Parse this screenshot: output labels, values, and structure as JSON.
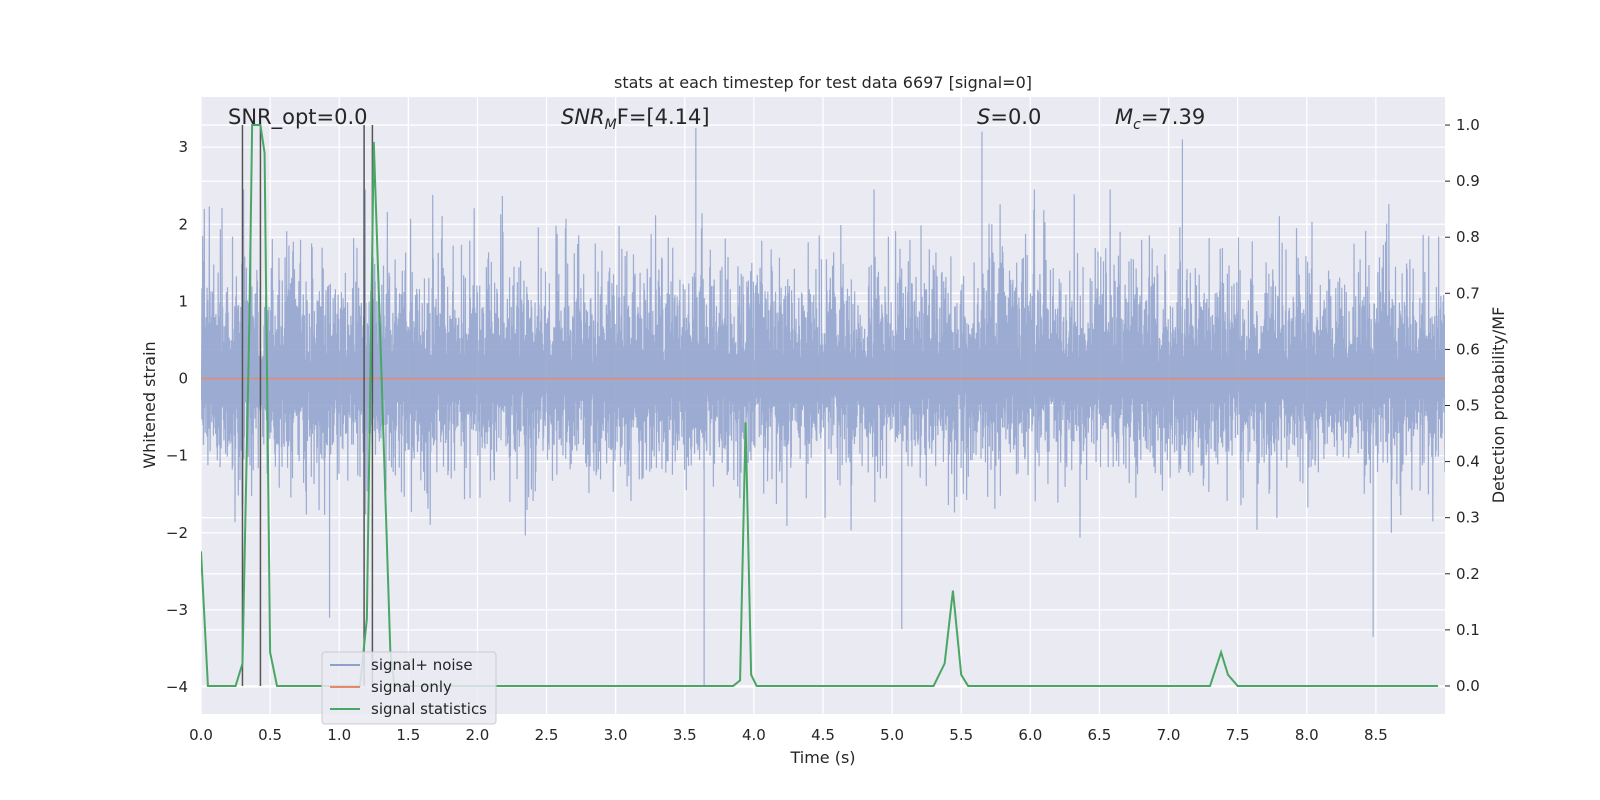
{
  "chart_data": {
    "type": "line",
    "title": "stats at each timestep for test data 6697 [signal=0]",
    "xlabel": "Time (s)",
    "ylabel": "Whitened strain",
    "y2label": "Detection probability/MF",
    "xlim": [
      0,
      9.0
    ],
    "ylim": [
      -4.35,
      3.65
    ],
    "y2lim": [
      -0.05,
      1.05
    ],
    "x_ticks": [
      0.0,
      0.5,
      1.0,
      1.5,
      2.0,
      2.5,
      3.0,
      3.5,
      4.0,
      4.5,
      5.0,
      5.5,
      6.0,
      6.5,
      7.0,
      7.5,
      8.0,
      8.5
    ],
    "x_tick_labels": [
      "0.0",
      "0.5",
      "1.0",
      "1.5",
      "2.0",
      "2.5",
      "3.0",
      "3.5",
      "4.0",
      "4.5",
      "5.0",
      "5.5",
      "6.0",
      "6.5",
      "7.0",
      "7.5",
      "8.0",
      "8.5"
    ],
    "y_ticks": [
      -4,
      -3,
      -2,
      -1,
      0,
      1,
      2,
      3
    ],
    "y_tick_labels": [
      "−4",
      "−3",
      "−2",
      "−1",
      "0",
      "1",
      "2",
      "3"
    ],
    "y2_ticks": [
      0.0,
      0.1,
      0.2,
      0.3,
      0.4,
      0.5,
      0.6,
      0.7,
      0.8,
      0.9,
      1.0
    ],
    "y2_tick_labels": [
      "0.0",
      "0.1",
      "0.2",
      "0.3",
      "0.4",
      "0.5",
      "0.6",
      "0.7",
      "0.8",
      "0.9",
      "1.0"
    ],
    "annotations": {
      "snr_opt": "SNR_opt=0.0",
      "snr_mf_prefix": "SNR",
      "snr_mf_sub": "M",
      "snr_mf_suffix": "F=[4.14]",
      "s_prefix": "S",
      "s_suffix": "=0.0",
      "mc_prefix": "M",
      "mc_sub": "c",
      "mc_suffix": "=7.39"
    },
    "legend": [
      "signal+ noise",
      "signal only",
      "signal statistics"
    ],
    "legend_position": "lower-left",
    "series": [
      {
        "name": "signal+ noise",
        "color": "#8da0cb",
        "description": "whitened noise, sampled at high rate",
        "envelope_typical": [
          -1.7,
          2.3
        ],
        "extreme_points": [
          [
            3.64,
            -4.0
          ],
          [
            3.58,
            3.25
          ],
          [
            8.48,
            -3.35
          ],
          [
            5.07,
            -3.25
          ],
          [
            5.65,
            3.2
          ],
          [
            0.93,
            -3.1
          ],
          [
            7.1,
            3.1
          ]
        ]
      },
      {
        "name": "signal only",
        "color": "#e5896a",
        "x": [
          0.0,
          9.0
        ],
        "y": [
          0.0,
          0.0
        ]
      },
      {
        "name": "signal statistics",
        "color": "#4aa665",
        "x": [
          0.0,
          0.05,
          0.1,
          0.15,
          0.25,
          0.3,
          0.35,
          0.37,
          0.4,
          0.43,
          0.46,
          0.5,
          0.55,
          0.6,
          0.65,
          0.7,
          1.15,
          1.2,
          1.25,
          1.3,
          1.37,
          1.4,
          1.45,
          3.85,
          3.9,
          3.94,
          3.98,
          4.02,
          4.1,
          5.3,
          5.38,
          5.44,
          5.5,
          5.55,
          7.3,
          7.38,
          7.43,
          7.5,
          7.7,
          8.95
        ],
        "y": [
          0.24,
          0.0,
          0.0,
          0.0,
          0.0,
          0.04,
          0.65,
          1.0,
          1.0,
          1.0,
          0.95,
          0.06,
          0.0,
          0.0,
          0.0,
          0.0,
          0.0,
          0.12,
          0.97,
          0.6,
          0.06,
          0.0,
          0.0,
          0.0,
          0.01,
          0.47,
          0.02,
          0.0,
          0.0,
          0.0,
          0.04,
          0.17,
          0.02,
          0.0,
          0.0,
          0.06,
          0.02,
          0.0,
          0.0,
          0.0
        ]
      }
    ],
    "vertical_markers": {
      "color": "#555555",
      "x": [
        0.3,
        0.43,
        1.18,
        1.24
      ]
    }
  }
}
